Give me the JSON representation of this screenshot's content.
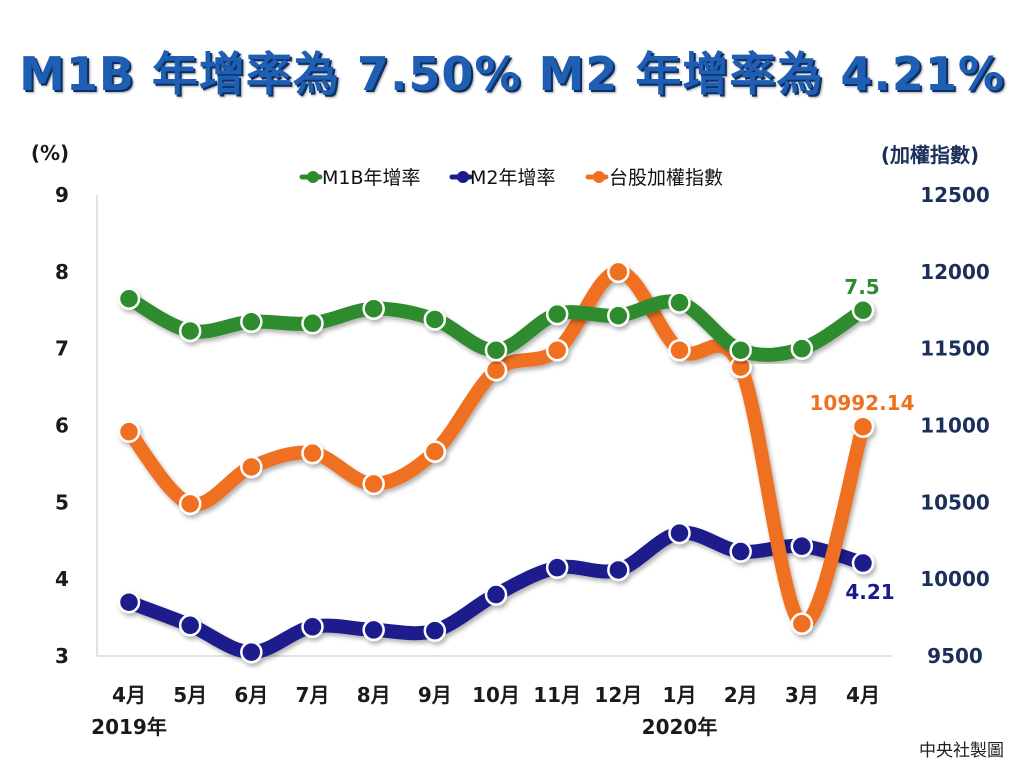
{
  "title": "M1B 年增率為 7.50%  M2 年增率為 4.21%",
  "credit": "中央社製圖",
  "colors": {
    "m1b": "#2e8b2e",
    "m2": "#1a1a8c",
    "taiex": "#f07020",
    "title": "#1f5fb3"
  },
  "chart_data": {
    "type": "line",
    "title": "M1B 年增率為 7.50%  M2 年增率為 4.21%",
    "categories": [
      "4月",
      "5月",
      "6月",
      "7月",
      "8月",
      "9月",
      "10月",
      "11月",
      "12月",
      "1月",
      "2月",
      "3月",
      "4月"
    ],
    "year_labels": [
      {
        "index": 0,
        "text": "2019年"
      },
      {
        "index": 9,
        "text": "2020年"
      }
    ],
    "y_left": {
      "label": "(%)",
      "lim": [
        3,
        9
      ],
      "ticks": [
        9,
        8,
        7,
        6,
        5,
        4,
        3
      ]
    },
    "y_right": {
      "label": "(加權指數)",
      "lim": [
        9500,
        12500
      ],
      "ticks": [
        12500,
        12000,
        11500,
        11000,
        10500,
        10000,
        9500
      ]
    },
    "legend": {
      "position": "top-center"
    },
    "series": [
      {
        "key": "m1b",
        "name": "M1B年增率",
        "axis": "left",
        "values": [
          7.65,
          7.23,
          7.35,
          7.33,
          7.52,
          7.38,
          6.98,
          7.45,
          7.43,
          7.6,
          6.98,
          7.0,
          7.5
        ],
        "end_label": "7.5"
      },
      {
        "key": "m2",
        "name": "M2年增率",
        "axis": "left",
        "values": [
          3.7,
          3.4,
          3.05,
          3.38,
          3.34,
          3.33,
          3.8,
          4.15,
          4.12,
          4.6,
          4.36,
          4.43,
          4.21
        ],
        "end_label": "4.21"
      },
      {
        "key": "taiex",
        "name": "台股加權指數",
        "axis": "right",
        "values": [
          10960,
          10490,
          10730,
          10820,
          10620,
          10830,
          11360,
          11490,
          12000,
          11490,
          11380,
          9710,
          10992.14
        ],
        "end_label": "10992.14"
      }
    ]
  }
}
